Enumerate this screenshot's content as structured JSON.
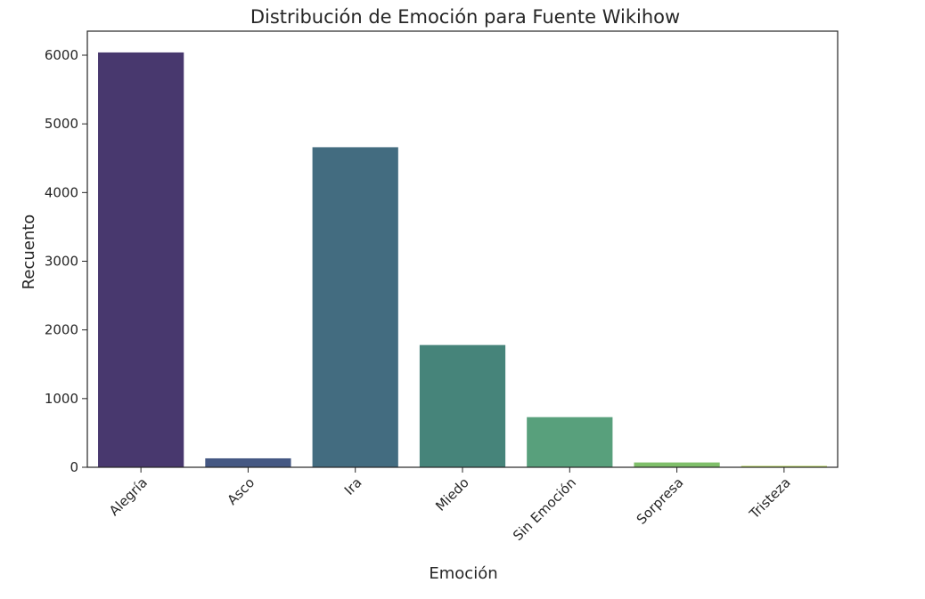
{
  "chart_data": {
    "type": "bar",
    "title": "Distribución de Emoción para Fuente Wikihow",
    "xlabel": "Emoción",
    "ylabel": "Recuento",
    "categories": [
      "Alegría",
      "Asco",
      "Ira",
      "Miedo",
      "Sin Emoción",
      "Sorpresa",
      "Tristeza"
    ],
    "values": [
      6040,
      130,
      4660,
      1780,
      730,
      70,
      20
    ],
    "colors": [
      "#48386e",
      "#455883",
      "#436c80",
      "#46847a",
      "#58a07c",
      "#7fbf6a",
      "#b4d159"
    ],
    "ylim": [
      0,
      6350
    ],
    "yticks": [
      0,
      1000,
      2000,
      3000,
      4000,
      5000,
      6000
    ],
    "grid": false,
    "legend": "none"
  }
}
